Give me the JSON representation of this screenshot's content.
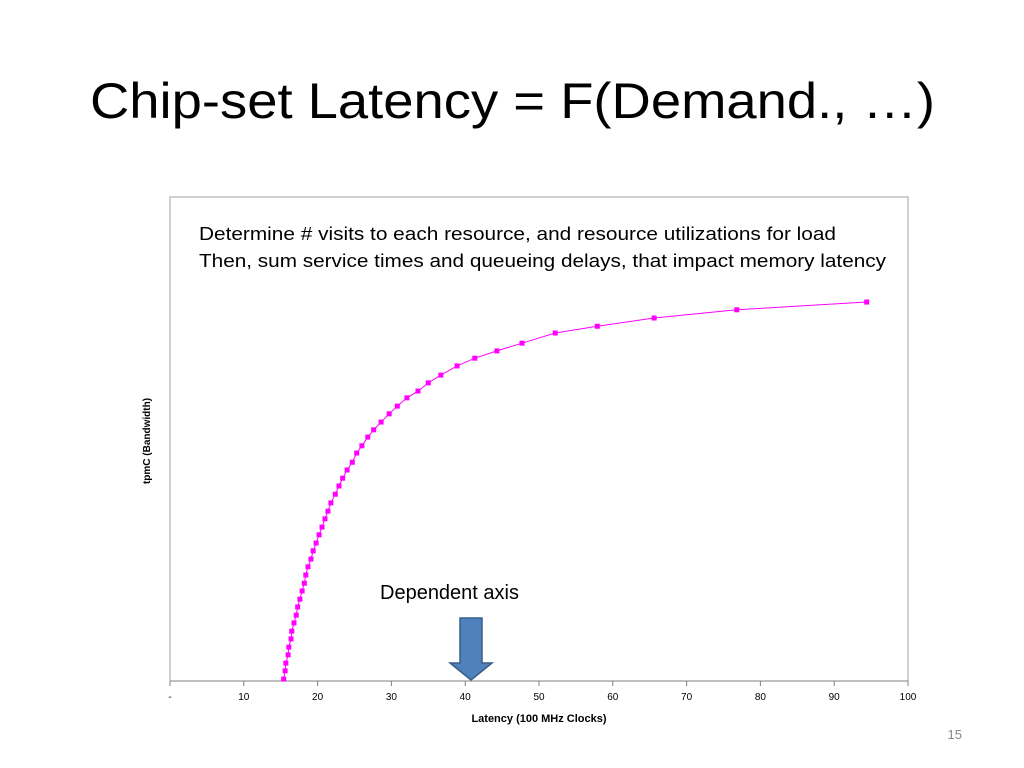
{
  "title": "Chip-set Latency = F(Demand., …)",
  "page_number": "15",
  "chart_data": {
    "type": "line",
    "annotations": [
      "Determine # visits to each resource, and resource utilizations for load",
      "Then, sum service times and queueing delays, that impact memory latency"
    ],
    "callout": "Dependent axis",
    "x_label": "Latency (100 MHz Clocks)",
    "y_label": "tpmC (Bandwidth)",
    "color": "#ff00ff",
    "x": [
      15.4,
      15.6,
      15.7,
      16.0,
      16.1,
      16.4,
      16.5,
      16.8,
      17.1,
      17.3,
      17.6,
      17.9,
      18.2,
      18.4,
      18.7,
      19.1,
      19.4,
      19.8,
      20.2,
      20.6,
      21.0,
      21.4,
      21.8,
      22.4,
      22.9,
      23.4,
      24.0,
      24.7,
      25.3,
      26.0,
      26.8,
      27.6,
      28.6,
      29.7,
      30.8,
      32.1,
      33.6,
      35.0,
      36.7,
      38.9,
      41.3,
      44.3,
      47.7,
      52.2,
      57.9,
      65.6,
      76.8,
      94.4
    ],
    "values": [
      0.4,
      2.1,
      3.7,
      5.4,
      7.0,
      8.7,
      10.3,
      12.0,
      13.6,
      15.3,
      16.9,
      18.6,
      20.2,
      21.9,
      23.6,
      25.2,
      26.9,
      28.5,
      30.2,
      31.8,
      33.5,
      35.1,
      36.8,
      38.6,
      40.3,
      41.9,
      43.6,
      45.2,
      47.1,
      48.6,
      50.4,
      51.9,
      53.5,
      55.2,
      56.8,
      58.5,
      59.9,
      61.6,
      63.2,
      65.1,
      66.7,
      68.2,
      69.8,
      71.9,
      73.3,
      75.0,
      76.7,
      78.3
    ],
    "xlim": [
      0,
      100
    ],
    "xticks": [
      {
        "value": 0,
        "label": "-"
      },
      10,
      20,
      30,
      40,
      50,
      60,
      70,
      80,
      90,
      100
    ],
    "ylim": [
      0,
      100
    ]
  }
}
